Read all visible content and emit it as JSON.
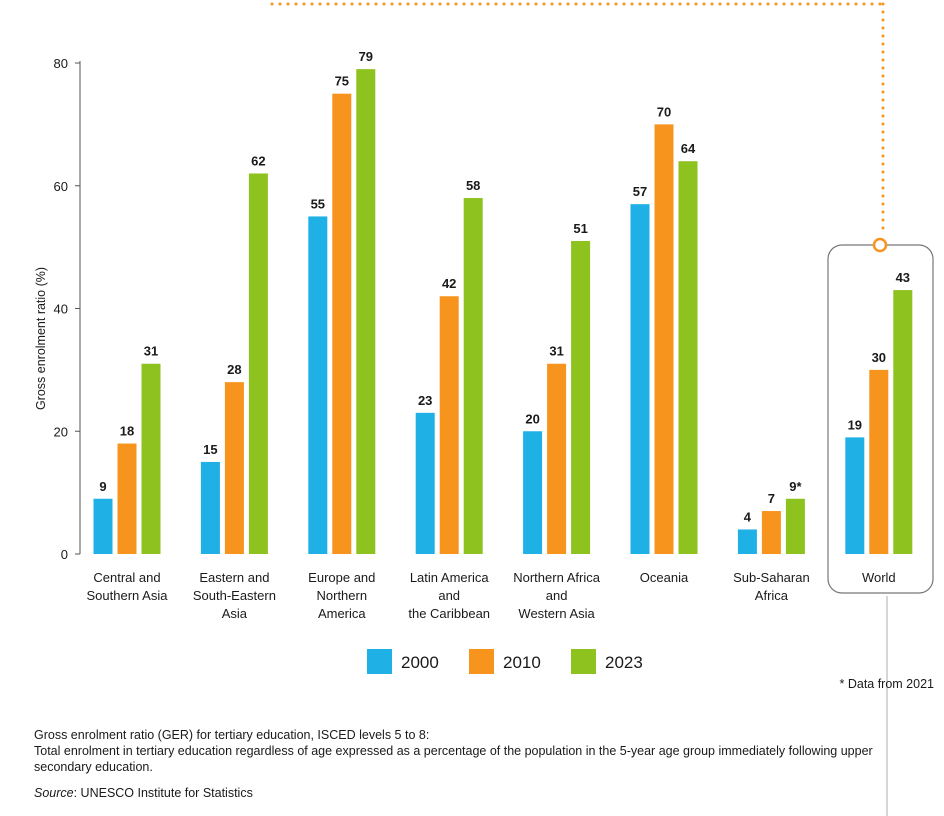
{
  "chart_data": {
    "type": "bar",
    "ylabel": "Gross enrolment ratio (%)",
    "ylim": [
      0,
      80
    ],
    "yticks": [
      0,
      20,
      40,
      60,
      80
    ],
    "categories": [
      [
        "Central and",
        "Southern Asia"
      ],
      [
        "Eastern and",
        "South-Eastern",
        "Asia"
      ],
      [
        "Europe and",
        "Northern",
        "America"
      ],
      [
        "Latin America",
        "and",
        "the Caribbean"
      ],
      [
        "Northern Africa",
        "and",
        "Western Asia"
      ],
      [
        "Oceania"
      ],
      [
        "Sub-Saharan",
        "Africa"
      ],
      [
        "World"
      ]
    ],
    "series": [
      {
        "name": "2000",
        "color": "#1fb1e6",
        "values": [
          9,
          15,
          55,
          23,
          20,
          57,
          4,
          19
        ],
        "labels": [
          "9",
          "15",
          "55",
          "23",
          "20",
          "57",
          "4",
          "19"
        ]
      },
      {
        "name": "2010",
        "color": "#f7941d",
        "values": [
          18,
          28,
          75,
          42,
          31,
          70,
          7,
          30
        ],
        "labels": [
          "18",
          "28",
          "75",
          "42",
          "31",
          "70",
          "7",
          "30"
        ]
      },
      {
        "name": "2023",
        "color": "#8dc21f",
        "values": [
          31,
          62,
          79,
          58,
          51,
          64,
          9,
          43
        ],
        "labels": [
          "31",
          "62",
          "79",
          "58",
          "51",
          "64",
          "9*",
          "43"
        ]
      }
    ],
    "legend_position": "bottom-center",
    "grid": false,
    "highlighted_category": "World"
  },
  "colors": {
    "accent": "#f7941d",
    "highlight_border": "#777777"
  },
  "notes": {
    "footnote": "* Data from 2021",
    "definition_title": "Gross enrolment ratio (GER) for tertiary education, ISCED levels 5  to 8:",
    "definition_body": "Total enrolment in tertiary education regardless of age expressed as a percentage of the population in the 5-year age group immediately following upper secondary education.",
    "source_label": "Source",
    "source_text": ": UNESCO Institute for Statistics"
  }
}
